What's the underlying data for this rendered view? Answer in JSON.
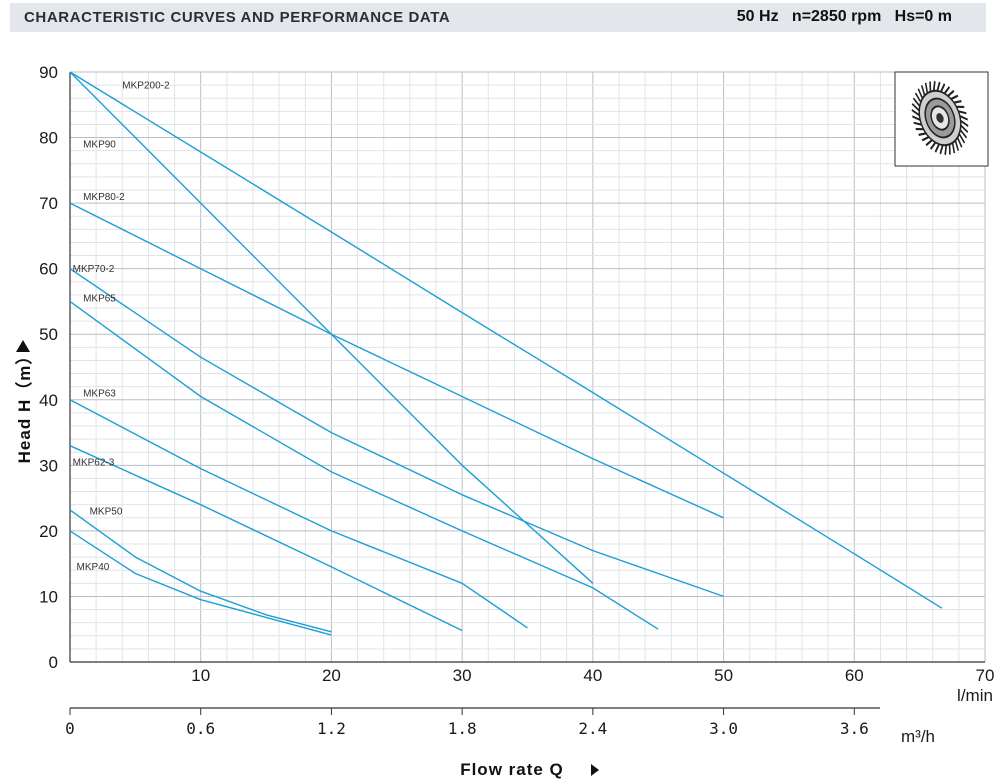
{
  "header": {
    "title": "CHARACTERISTIC CURVES AND PERFORMANCE DATA",
    "conditions": "50 Hz   n=2850 rpm   Hs=0 m"
  },
  "colors": {
    "curve": "#1e9fd6",
    "grid_major": "#b9bfc4",
    "grid_minor": "#e1e4e7",
    "axis": "#333333",
    "header_bg": "#e3e6ea"
  },
  "axes": {
    "y_title": "Head H（m）",
    "x_title": "Flow rate Q",
    "x_unit_lmin": "l/min",
    "x_unit_m3h": "m³/h"
  },
  "chart_data": {
    "type": "line",
    "title": "",
    "xlabel": "Flow rate Q (l/min)",
    "ylabel": "Head H (m)",
    "xlim": [
      0,
      70
    ],
    "ylim": [
      0,
      90
    ],
    "grid": true,
    "y_ticks": [
      "0",
      "10",
      "20",
      "30",
      "40",
      "50",
      "60",
      "70",
      "80",
      "90"
    ],
    "x_ticks_lmin": [
      "10",
      "20",
      "30",
      "40",
      "50",
      "60",
      "70"
    ],
    "x_ticks_m3h": [
      {
        "at": 0,
        "label": "0"
      },
      {
        "at": 10,
        "label": "0.6"
      },
      {
        "at": 20,
        "label": "1.2"
      },
      {
        "at": 30,
        "label": "1.8"
      },
      {
        "at": 40,
        "label": "2.4"
      },
      {
        "at": 50,
        "label": "3.0"
      },
      {
        "at": 60,
        "label": "3.6"
      }
    ],
    "series": [
      {
        "name": "MKP200-2",
        "x": [
          0,
          10,
          20,
          30,
          40,
          50,
          60,
          66.7
        ],
        "y": [
          90,
          77.8,
          65.6,
          53.3,
          41.1,
          28.8,
          16.5,
          8.2
        ],
        "label_at": [
          4,
          87.5
        ]
      },
      {
        "name": "MKP90",
        "x": [
          0,
          10,
          20,
          30,
          40
        ],
        "y": [
          90,
          70,
          50,
          30,
          12
        ],
        "label_at": [
          1,
          78.5
        ]
      },
      {
        "name": "MKP80-2",
        "x": [
          0,
          10,
          20,
          30,
          40,
          50
        ],
        "y": [
          70,
          60,
          50,
          40.5,
          31,
          22
        ],
        "label_at": [
          1,
          70.5
        ]
      },
      {
        "name": "MKP70-2",
        "x": [
          0,
          10,
          20,
          30,
          40,
          50
        ],
        "y": [
          60,
          46.5,
          35,
          25.5,
          17,
          10
        ],
        "label_at": [
          0.2,
          59.5
        ]
      },
      {
        "name": "MKP65",
        "x": [
          0,
          10,
          20,
          30,
          40,
          45
        ],
        "y": [
          55,
          40.5,
          29,
          20,
          11.3,
          5
        ],
        "label_at": [
          1,
          55
        ]
      },
      {
        "name": "MKP63",
        "x": [
          0,
          10,
          20,
          30,
          35
        ],
        "y": [
          40,
          29.5,
          20,
          12,
          5.2
        ],
        "label_at": [
          1,
          40.5
        ]
      },
      {
        "name": "MKP62-3",
        "x": [
          0,
          10,
          20,
          30
        ],
        "y": [
          33,
          24,
          14.5,
          4.8
        ],
        "label_at": [
          0.2,
          30
        ]
      },
      {
        "name": "MKP50",
        "x": [
          0,
          5,
          10,
          15,
          20
        ],
        "y": [
          23.2,
          16,
          10.8,
          7.2,
          4.6
        ],
        "label_at": [
          1.5,
          22.5
        ]
      },
      {
        "name": "MKP40",
        "x": [
          0,
          5,
          10,
          15,
          20
        ],
        "y": [
          20,
          13.5,
          9.5,
          6.8,
          4.1
        ],
        "label_at": [
          0.5,
          14
        ]
      }
    ]
  }
}
